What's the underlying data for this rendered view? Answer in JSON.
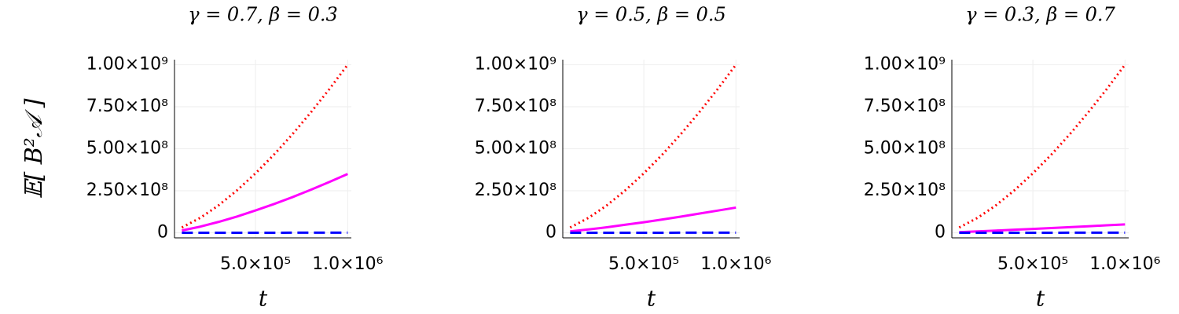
{
  "chart_data": [
    {
      "type": "line",
      "title": "γ = 0.7, β = 0.3",
      "x_label": "t",
      "y_label": "𝔼[ B²𝒜 ]",
      "x": [
        100000,
        200000,
        300000,
        400000,
        500000,
        600000,
        700000,
        800000,
        900000,
        1000000
      ],
      "series": [
        {
          "color": "#ff0000",
          "style": "dotted",
          "values": [
            31600000,
            89400000,
            164000000,
            253000000,
            354000000,
            465000000,
            586000000,
            716000000,
            854000000,
            1000000000
          ]
        },
        {
          "color": "#ff00ff",
          "style": "solid",
          "values": [
            13900000,
            36800000,
            65100000,
            97000000,
            133000000,
            171000000,
            212000000,
            256000000,
            302000000,
            350000000
          ]
        },
        {
          "color": "#0000ff",
          "style": "dashed",
          "values": [
            100000,
            200000,
            300000,
            400000,
            500000,
            600000,
            700000,
            800000,
            900000,
            1000000
          ]
        }
      ],
      "xlim": [
        60000,
        1020000
      ],
      "xticks": [
        {
          "value": 500000,
          "label": "5.0×10⁵"
        },
        {
          "value": 1000000,
          "label": "1.0×10⁶"
        }
      ],
      "ylim": [
        -30000000,
        1030000000
      ],
      "yticks": [
        0,
        {
          "value": 250000000,
          "label": "2.50×10⁸"
        },
        {
          "value": 500000000,
          "label": "5.00×10⁸"
        },
        {
          "value": 750000000,
          "label": "7.50×10⁸"
        },
        {
          "value": 1000000000,
          "label": "1.00×10⁹"
        }
      ],
      "grid": true
    },
    {
      "type": "line",
      "title": "γ = 0.5, β = 0.5",
      "x_label": "t",
      "x": [
        100000,
        200000,
        300000,
        400000,
        500000,
        600000,
        700000,
        800000,
        900000,
        1000000
      ],
      "series": [
        {
          "color": "#ff0000",
          "style": "dotted",
          "values": [
            31600000,
            89400000,
            164000000,
            253000000,
            354000000,
            465000000,
            586000000,
            716000000,
            854000000,
            1000000000
          ]
        },
        {
          "color": "#ff00ff",
          "style": "solid",
          "values": [
            8400000,
            20000000,
            33000000,
            48000000,
            63000000,
            79000000,
            96000000,
            114000000,
            132000000,
            150000000
          ]
        },
        {
          "color": "#0000ff",
          "style": "dashed",
          "values": [
            100000,
            200000,
            300000,
            400000,
            500000,
            600000,
            700000,
            800000,
            900000,
            1000000
          ]
        }
      ],
      "xlim": [
        60000,
        1020000
      ],
      "xticks": [
        {
          "value": 500000,
          "label": "5.0×10⁵"
        },
        {
          "value": 1000000,
          "label": "1.0×10⁶"
        }
      ],
      "ylim": [
        -30000000,
        1030000000
      ],
      "yticks": [
        0,
        {
          "value": 250000000,
          "label": "2.50×10⁸"
        },
        {
          "value": 500000000,
          "label": "5.00×10⁸"
        },
        {
          "value": 750000000,
          "label": "7.50×10⁸"
        },
        {
          "value": 1000000000,
          "label": "1.00×10⁹"
        }
      ],
      "grid": true
    },
    {
      "type": "line",
      "title": "γ = 0.3, β = 0.7",
      "x_label": "t",
      "x": [
        100000,
        200000,
        300000,
        400000,
        500000,
        600000,
        700000,
        800000,
        900000,
        1000000
      ],
      "series": [
        {
          "color": "#ff0000",
          "style": "dotted",
          "values": [
            31600000,
            89400000,
            164000000,
            253000000,
            354000000,
            465000000,
            586000000,
            716000000,
            854000000,
            1000000000
          ]
        },
        {
          "color": "#ff00ff",
          "style": "solid",
          "values": [
            4000000,
            8500000,
            13300000,
            18300000,
            23300000,
            28500000,
            33800000,
            39100000,
            44500000,
            50000000
          ]
        },
        {
          "color": "#0000ff",
          "style": "dashed",
          "values": [
            100000,
            200000,
            300000,
            400000,
            500000,
            600000,
            700000,
            800000,
            900000,
            1000000
          ]
        }
      ],
      "xlim": [
        60000,
        1020000
      ],
      "xticks": [
        {
          "value": 500000,
          "label": "5.0×10⁵"
        },
        {
          "value": 1000000,
          "label": "1.0×10⁶"
        }
      ],
      "ylim": [
        -30000000,
        1030000000
      ],
      "yticks": [
        0,
        {
          "value": 250000000,
          "label": "2.50×10⁸"
        },
        {
          "value": 500000000,
          "label": "5.00×10⁸"
        },
        {
          "value": 750000000,
          "label": "7.50×10⁸"
        },
        {
          "value": 1000000000,
          "label": "1.00×10⁹"
        }
      ],
      "grid": true
    }
  ]
}
